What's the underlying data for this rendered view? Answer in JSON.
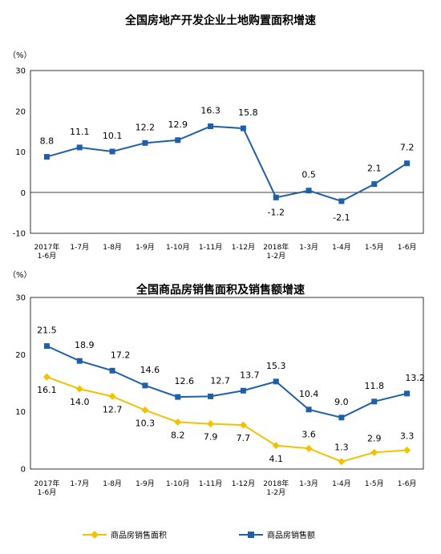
{
  "chart_data": [
    {
      "type": "line",
      "title": "全国房地产开发企业土地购置面积增速",
      "unit_label": "（%）",
      "ylim": [
        -10,
        30
      ],
      "yticks": [
        "30",
        "20",
        "10",
        "0",
        "-10"
      ],
      "categories": [
        [
          "2017年",
          "1-6月"
        ],
        [
          "1-7月"
        ],
        [
          "1-8月"
        ],
        [
          "1-9月"
        ],
        [
          "1-10月"
        ],
        [
          "1-11月"
        ],
        [
          "1-12月"
        ],
        [
          "2018年",
          "1-2月"
        ],
        [
          "1-3月"
        ],
        [
          "1-4月"
        ],
        [
          "1-5月"
        ],
        [
          "1-6月"
        ]
      ],
      "series": [
        {
          "color": "#1f5fa8",
          "marker": "square",
          "values": [
            8.8,
            11.1,
            10.1,
            12.2,
            12.9,
            16.3,
            15.8,
            -1.2,
            0.5,
            -2.1,
            2.1,
            7.2
          ],
          "labels": [
            "8.8",
            "11.1",
            "10.1",
            "12.2",
            "12.9",
            "16.3",
            "15.8",
            "-1.2",
            "0.5",
            "-2.1",
            "2.1",
            "7.2"
          ]
        }
      ],
      "grid": false
    },
    {
      "type": "line",
      "title": "全国商品房销售面积及销售额增速",
      "unit_label": "（%）",
      "ylim": [
        0,
        30
      ],
      "yticks": [
        "30",
        "20",
        "10",
        "0"
      ],
      "categories": [
        [
          "2017年",
          "1-6月"
        ],
        [
          "1-7月"
        ],
        [
          "1-8月"
        ],
        [
          "1-9月"
        ],
        [
          "1-10月"
        ],
        [
          "1-11月"
        ],
        [
          "1-12月"
        ],
        [
          "2018年",
          "1-2月"
        ],
        [
          "1-3月"
        ],
        [
          "1-4月"
        ],
        [
          "1-5月"
        ],
        [
          "1-6月"
        ]
      ],
      "series": [
        {
          "name": "商品房销售额",
          "color": "#1f5fa8",
          "marker": "square",
          "values": [
            21.5,
            18.9,
            17.2,
            14.6,
            12.6,
            12.7,
            13.7,
            15.3,
            10.4,
            9.0,
            11.8,
            13.2
          ],
          "labels": [
            "21.5",
            "18.9",
            "17.2",
            "14.6",
            "12.6",
            "12.7",
            "13.7",
            "15.3",
            "10.4",
            "9.0",
            "11.8",
            "13.2"
          ]
        },
        {
          "name": "商品房销售面积",
          "color": "#f2c200",
          "marker": "diamond",
          "values": [
            16.1,
            14.0,
            12.7,
            10.3,
            8.2,
            7.9,
            7.7,
            4.1,
            3.6,
            1.3,
            2.9,
            3.3
          ],
          "labels": [
            "16.1",
            "14.0",
            "12.7",
            "10.3",
            "8.2",
            "7.9",
            "7.7",
            "4.1",
            "3.6",
            "1.3",
            "2.9",
            "3.3"
          ]
        }
      ],
      "legend": {
        "placement": "bottom",
        "items": [
          {
            "label": "商品房销售面积",
            "color": "#f2c200",
            "marker": "diamond"
          },
          {
            "label": "商品房销售额",
            "color": "#1f5fa8",
            "marker": "square"
          }
        ]
      },
      "grid": false
    }
  ]
}
